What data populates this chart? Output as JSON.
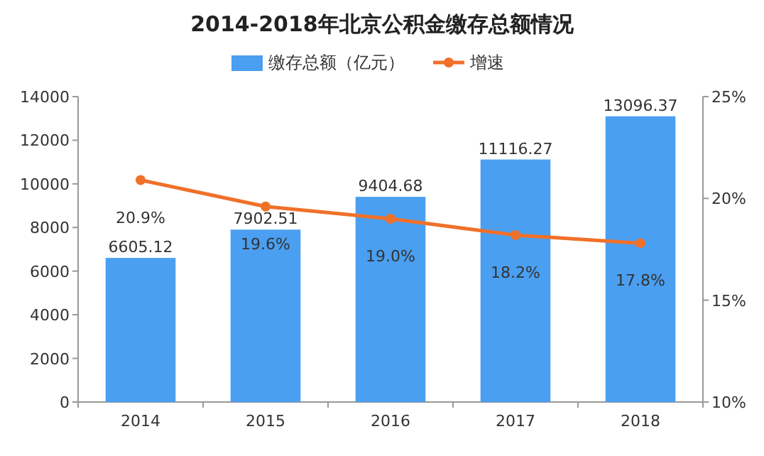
{
  "chart_data": {
    "type": "bar",
    "title": "2014-2018年北京公积金缴存总额情况",
    "categories": [
      "2014",
      "2015",
      "2016",
      "2017",
      "2018"
    ],
    "series": [
      {
        "name": "缴存总额（亿元）",
        "color": "#4a9ff0",
        "values": [
          6605.12,
          7902.51,
          9404.68,
          11116.27,
          13096.37
        ],
        "value_labels": [
          "6605.12",
          "7902.51",
          "9404.68",
          "11116.27",
          "13096.37"
        ]
      },
      {
        "name": "增速",
        "type": "line",
        "axis": "y2",
        "color": "#f0702a",
        "marker": "circle",
        "values": [
          20.9,
          19.6,
          19.0,
          18.2,
          17.8
        ],
        "value_labels": [
          "20.9%",
          "19.6%",
          "19.0%",
          "18.2%",
          "17.8%"
        ]
      }
    ],
    "ylim": [
      0,
      14000
    ],
    "yticks": [
      0,
      2000,
      4000,
      6000,
      8000,
      10000,
      12000,
      14000
    ],
    "y2lim": [
      10,
      25
    ],
    "y2ticks": [
      {
        "value": 10,
        "label": "10%"
      },
      {
        "value": 15,
        "label": "15%"
      },
      {
        "value": 20,
        "label": "20%"
      },
      {
        "value": 25,
        "label": "25%"
      }
    ],
    "legend": "top"
  }
}
